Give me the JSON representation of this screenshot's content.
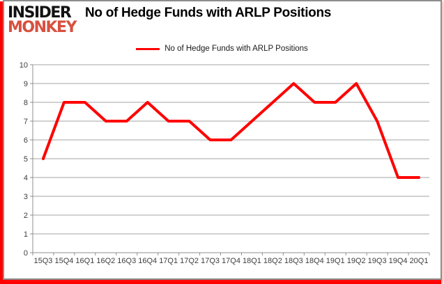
{
  "logo": {
    "line1": "INSIDER",
    "line2": "MONKEY"
  },
  "header": {
    "title": "No of Hedge Funds with ARLP Positions"
  },
  "legend": {
    "label": "No of Hedge Funds with ARLP Positions"
  },
  "chart_data": {
    "type": "line",
    "title": "No of Hedge Funds with ARLP Positions",
    "categories": [
      "15Q3",
      "15Q4",
      "16Q1",
      "16Q2",
      "16Q3",
      "16Q4",
      "17Q1",
      "17Q2",
      "17Q3",
      "17Q4",
      "18Q1",
      "18Q2",
      "18Q3",
      "18Q4",
      "19Q1",
      "19Q2",
      "19Q3",
      "19Q4",
      "20Q1"
    ],
    "series": [
      {
        "name": "No of Hedge Funds with ARLP Positions",
        "values": [
          5,
          8,
          8,
          7,
          7,
          8,
          7,
          7,
          6,
          6,
          7,
          8,
          9,
          8,
          8,
          9,
          7,
          4,
          4
        ],
        "color": "#ff0000"
      }
    ],
    "xlabel": "",
    "ylabel": "",
    "ylim": [
      0,
      10
    ],
    "ytick_step": 1,
    "grid": true,
    "legend_position": "top-center"
  },
  "colors": {
    "series_line": "#ff0000",
    "gridline": "#a3a3a3",
    "axis": "#8f8f8f",
    "tick_text": "#3d3d3d",
    "logo_black": "#121212",
    "logo_red": "#d8503f",
    "frame_border": "#8d8d8d",
    "frame_accent": "#ff0000"
  }
}
